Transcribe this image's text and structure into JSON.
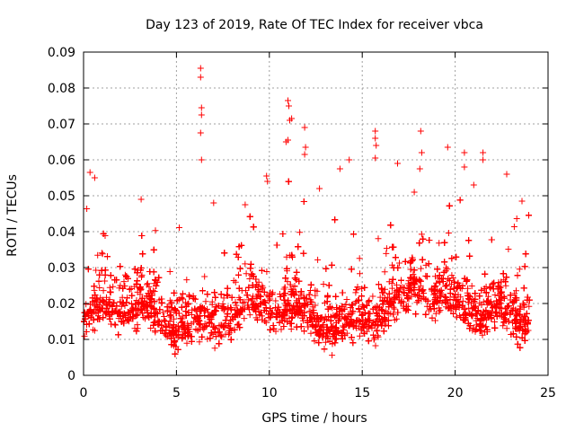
{
  "chart_data": {
    "type": "scatter",
    "title": "Day 123 of 2019, Rate Of TEC Index for receiver vbca",
    "xlabel": "GPS time / hours",
    "ylabel": "ROTI / TECUs",
    "xlim": [
      0,
      25
    ],
    "ylim": [
      0,
      0.09
    ],
    "xticks": [
      0,
      5,
      10,
      15,
      20,
      25
    ],
    "xtick_labels": [
      "0",
      "5",
      "10",
      "15",
      "20",
      "25"
    ],
    "yticks": [
      0,
      0.01,
      0.02,
      0.03,
      0.04,
      0.05,
      0.06,
      0.07,
      0.08,
      0.09
    ],
    "ytick_labels": [
      "0",
      "0.01",
      "0.02",
      "0.03",
      "0.04",
      "0.05",
      "0.06",
      "0.07",
      "0.08",
      "0.09"
    ],
    "grid": true,
    "marker": "plus",
    "marker_color": "#ff0000",
    "series": [
      {
        "name": "ROTI",
        "note": "dense scatter of ROTI values over 0-24 h; most between 0.005 and 0.04",
        "outliers": [
          {
            "x": 6.3,
            "y": 0.0855
          },
          {
            "x": 6.3,
            "y": 0.083
          },
          {
            "x": 6.35,
            "y": 0.0745
          },
          {
            "x": 6.35,
            "y": 0.0725
          },
          {
            "x": 6.3,
            "y": 0.0675
          },
          {
            "x": 6.35,
            "y": 0.06
          },
          {
            "x": 11.0,
            "y": 0.0765
          },
          {
            "x": 11.05,
            "y": 0.075
          },
          {
            "x": 11.1,
            "y": 0.071
          },
          {
            "x": 11.2,
            "y": 0.0715
          },
          {
            "x": 10.9,
            "y": 0.065
          },
          {
            "x": 11.0,
            "y": 0.0655
          },
          {
            "x": 11.9,
            "y": 0.069
          },
          {
            "x": 11.95,
            "y": 0.0635
          },
          {
            "x": 11.9,
            "y": 0.0615
          },
          {
            "x": 15.7,
            "y": 0.068
          },
          {
            "x": 15.7,
            "y": 0.066
          },
          {
            "x": 15.75,
            "y": 0.064
          },
          {
            "x": 15.7,
            "y": 0.0605
          },
          {
            "x": 18.15,
            "y": 0.068
          },
          {
            "x": 18.2,
            "y": 0.062
          },
          {
            "x": 18.1,
            "y": 0.0575
          },
          {
            "x": 19.6,
            "y": 0.0635
          },
          {
            "x": 20.5,
            "y": 0.062
          },
          {
            "x": 20.5,
            "y": 0.058
          },
          {
            "x": 21.5,
            "y": 0.062
          },
          {
            "x": 21.5,
            "y": 0.06
          },
          {
            "x": 14.3,
            "y": 0.06
          },
          {
            "x": 9.85,
            "y": 0.0555
          },
          {
            "x": 9.9,
            "y": 0.054
          },
          {
            "x": 0.35,
            "y": 0.0565
          },
          {
            "x": 0.6,
            "y": 0.055
          },
          {
            "x": 13.8,
            "y": 0.0575
          },
          {
            "x": 16.9,
            "y": 0.059
          },
          {
            "x": 23.6,
            "y": 0.0485
          },
          {
            "x": 3.1,
            "y": 0.049
          },
          {
            "x": 7.0,
            "y": 0.048
          },
          {
            "x": 8.7,
            "y": 0.0475
          },
          {
            "x": 12.7,
            "y": 0.052
          },
          {
            "x": 17.8,
            "y": 0.051
          },
          {
            "x": 21.0,
            "y": 0.053
          }
        ]
      }
    ]
  }
}
